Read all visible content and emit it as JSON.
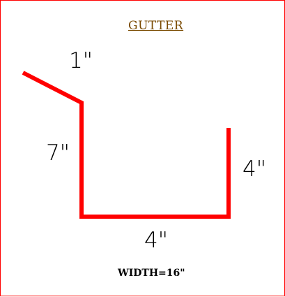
{
  "title": "GUTTER",
  "dimensions": {
    "top": "1\"",
    "left": "7\"",
    "right": "4\"",
    "bottom": "4\""
  },
  "width_note": "WIDTH=16\"",
  "colors": {
    "border": "#ff0000",
    "profile": "#ff0000",
    "title": "#7a4a00"
  }
}
